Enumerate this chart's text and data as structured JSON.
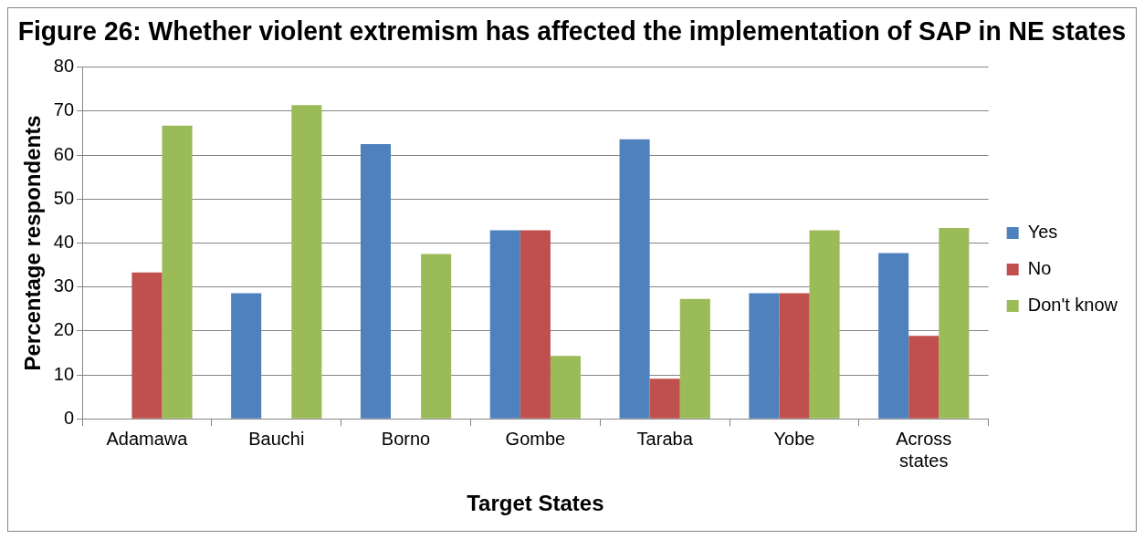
{
  "chart_data": {
    "type": "bar",
    "title": "Figure 26: Whether violent extremism has affected the implementation of SAP in NE states",
    "xlabel": "Target States",
    "ylabel": "Percentage respondents",
    "categories": [
      "Adamawa",
      "Bauchi",
      "Borno",
      "Gombe",
      "Taraba",
      "Yobe",
      "Across states"
    ],
    "series": [
      {
        "name": "Yes",
        "color": "#4f81bd",
        "values": [
          0,
          28.6,
          62.5,
          42.9,
          63.6,
          28.6,
          37.7
        ]
      },
      {
        "name": "No",
        "color": "#c0504d",
        "values": [
          33.3,
          0,
          0,
          42.9,
          9.1,
          28.6,
          18.9
        ]
      },
      {
        "name": "Don't know",
        "color": "#9bbb59",
        "values": [
          66.7,
          71.4,
          37.5,
          14.3,
          27.3,
          42.9,
          43.4
        ]
      }
    ],
    "ylim": [
      0,
      80
    ],
    "yticks": [
      0,
      10,
      20,
      30,
      40,
      50,
      60,
      70,
      80
    ],
    "grid": "y",
    "legend": "right"
  }
}
